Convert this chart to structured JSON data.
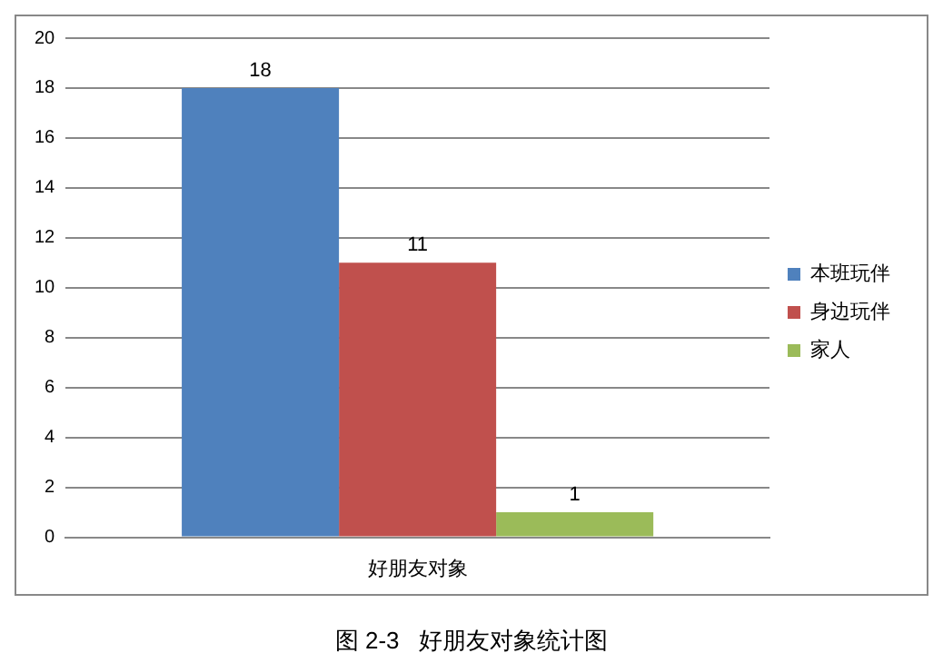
{
  "chart_data": {
    "type": "bar",
    "title": "图 2-3   好朋友对象统计图",
    "categories": [
      "好朋友对象"
    ],
    "series": [
      {
        "name": "本班玩伴",
        "color": "#4f81bd",
        "values": [
          18
        ]
      },
      {
        "name": "身边玩伴",
        "color": "#c0504d",
        "values": [
          11
        ]
      },
      {
        "name": "家人",
        "color": "#9bbb59",
        "values": [
          1
        ]
      }
    ],
    "ylim": [
      0,
      20
    ],
    "yticks": [
      0,
      2,
      4,
      6,
      8,
      10,
      12,
      14,
      16,
      18,
      20
    ],
    "grid": "y",
    "legend": "right",
    "data_labels": true
  }
}
